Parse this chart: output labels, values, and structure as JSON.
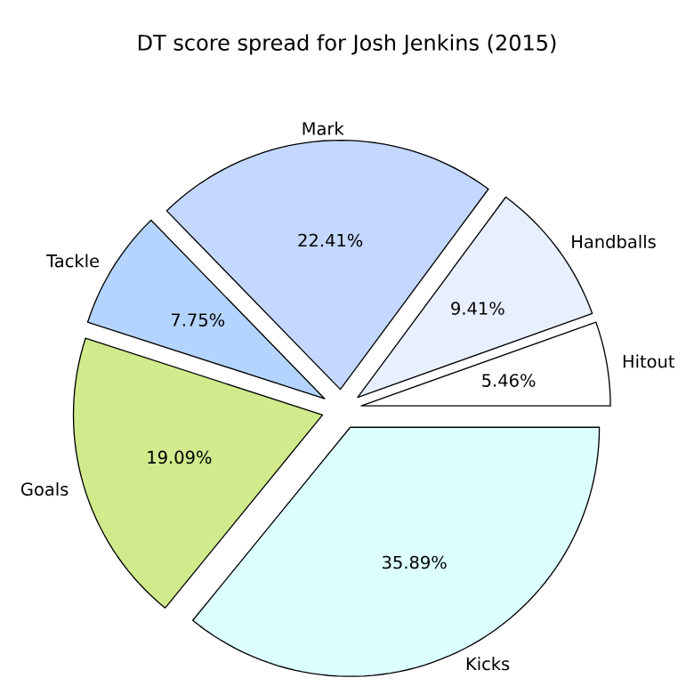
{
  "chart_data": {
    "type": "pie",
    "title": "DT score spread for Josh Jenkins (2015)",
    "categories": [
      "Hitout",
      "Handballs",
      "Mark",
      "Tackle",
      "Goals",
      "Kicks"
    ],
    "values": [
      5.46,
      9.41,
      22.41,
      7.75,
      19.09,
      35.89
    ],
    "colors": [
      "#ffffff",
      "#e8f0ff",
      "#c4d8ff",
      "#b4d4ff",
      "#d0ea8c",
      "#dcffff"
    ],
    "value_labels": [
      "5.46%",
      "9.41%",
      "22.41%",
      "7.75%",
      "19.09%",
      "35.89%"
    ]
  }
}
